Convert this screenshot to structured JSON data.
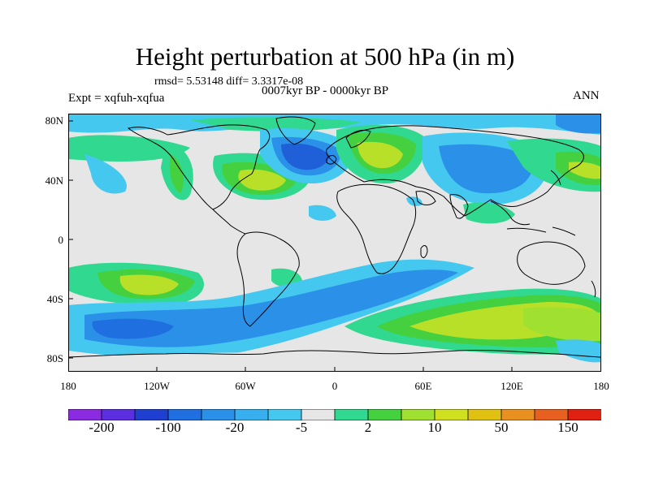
{
  "title": "Height perturbation at 500 hPa (in m)",
  "stats": "rmsd= 5.53148 diff= 3.3317e-08",
  "period": "0007kyr BP - 0000kyr BP",
  "expt": "Expt = xqfuh-xqfua",
  "season": "ANN",
  "lat_labels": [
    "80N",
    "40N",
    "0",
    "40S",
    "80S"
  ],
  "lon_labels": [
    "180",
    "120W",
    "60W",
    "0",
    "60E",
    "120E",
    "180"
  ],
  "colorbar": {
    "colors": [
      "#8a2be2",
      "#5b2fe0",
      "#1f3fd0",
      "#1f6fe0",
      "#2a90e8",
      "#38b0f0",
      "#45c8f0",
      "#e6e6e6",
      "#30d890",
      "#45d040",
      "#a0e030",
      "#d0e020",
      "#e0c010",
      "#e89020",
      "#e86020",
      "#e02010"
    ],
    "labels": [
      "-200",
      "-100",
      "-20",
      "-5",
      "2",
      "10",
      "50",
      "150"
    ]
  },
  "colors": {
    "neutral": "#e6e6e6",
    "blue_dark": "#1f5fd8",
    "blue_mid": "#2a90e8",
    "cyan": "#3cc0f0",
    "green_pale": "#30d890",
    "green": "#45d040",
    "yellow_green": "#b8e028",
    "coast": "#000000"
  }
}
